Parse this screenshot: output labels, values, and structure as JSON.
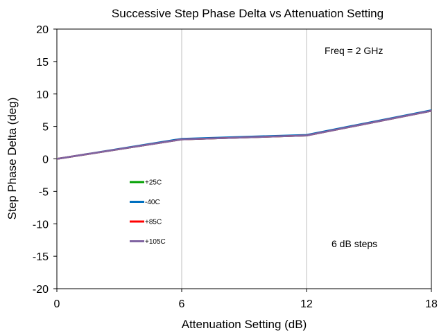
{
  "chart_data": {
    "type": "line",
    "title": "Successive Step Phase Delta vs Attenuation Setting",
    "xlabel": "Attenuation Setting (dB)",
    "ylabel": "Step Phase Delta (deg)",
    "xlim": [
      0,
      18
    ],
    "ylim": [
      -20,
      20
    ],
    "xticks": [
      0,
      6,
      12,
      18
    ],
    "yticks": [
      20,
      15,
      10,
      5,
      0,
      -5,
      -10,
      -15,
      -20
    ],
    "grid": "vertical",
    "legend_position": "left",
    "annotations": [
      "Freq = 2 GHz",
      "6 dB steps"
    ],
    "x": [
      0,
      6,
      12,
      18
    ],
    "series": [
      {
        "name": "+25C",
        "color": "#00a000",
        "values": [
          0,
          3.0,
          3.6,
          7.4
        ]
      },
      {
        "name": "-40C",
        "color": "#0070c0",
        "values": [
          0,
          3.1,
          3.7,
          7.5
        ]
      },
      {
        "name": "+85C",
        "color": "#ff0000",
        "values": [
          0,
          3.0,
          3.6,
          7.4
        ]
      },
      {
        "name": "+105C",
        "color": "#8064a2",
        "values": [
          0,
          3.0,
          3.6,
          7.4
        ]
      }
    ]
  }
}
